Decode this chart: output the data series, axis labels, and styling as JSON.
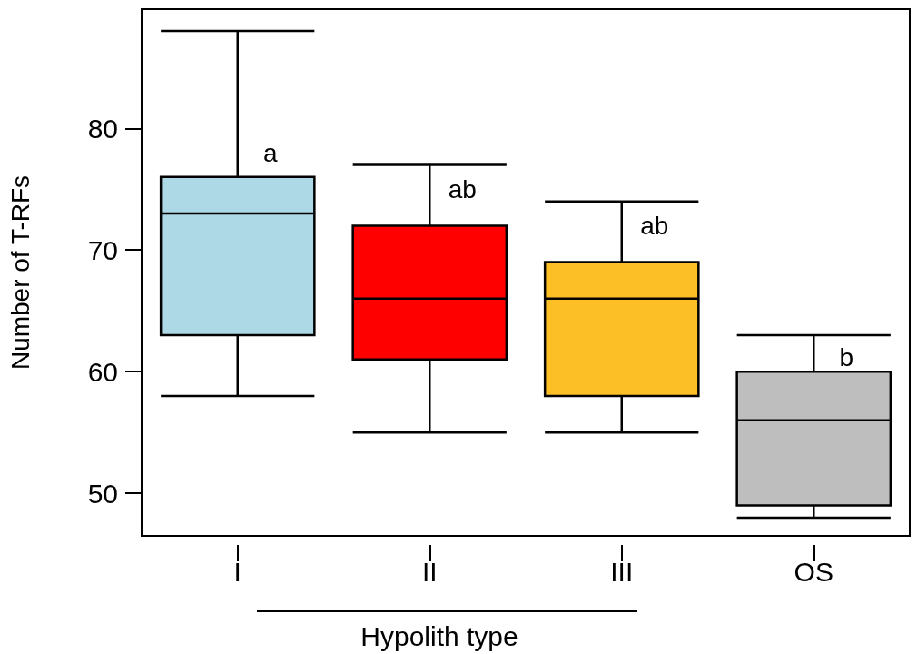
{
  "chart_data": {
    "type": "box",
    "xlabel": "Hypolith type",
    "ylabel": "Number of T-RFs",
    "categories": [
      "I",
      "II",
      "III",
      "OS"
    ],
    "boxes": [
      {
        "low": 58,
        "q1": 63,
        "median": 73,
        "q3": 76,
        "high": 88
      },
      {
        "low": 55,
        "q1": 61,
        "median": 66,
        "q3": 72,
        "high": 77
      },
      {
        "low": 55,
        "q1": 58,
        "median": 66,
        "q3": 69,
        "high": 74
      },
      {
        "low": 48,
        "q1": 49,
        "median": 56,
        "q3": 60,
        "high": 63
      }
    ],
    "colors": [
      "#add8e6",
      "#ff0000",
      "#fcbf26",
      "#bebebe"
    ],
    "ylim": [
      46.5,
      89.8
    ],
    "yticks": [
      50,
      60,
      70,
      80
    ],
    "annotations": [
      {
        "text": "a",
        "x": "I",
        "y": 78
      },
      {
        "text": "ab",
        "x": "II",
        "y": 75
      },
      {
        "text": "ab",
        "x": "III",
        "y": 72
      },
      {
        "text": "b",
        "x": "OS",
        "y": 61.2
      }
    ]
  }
}
